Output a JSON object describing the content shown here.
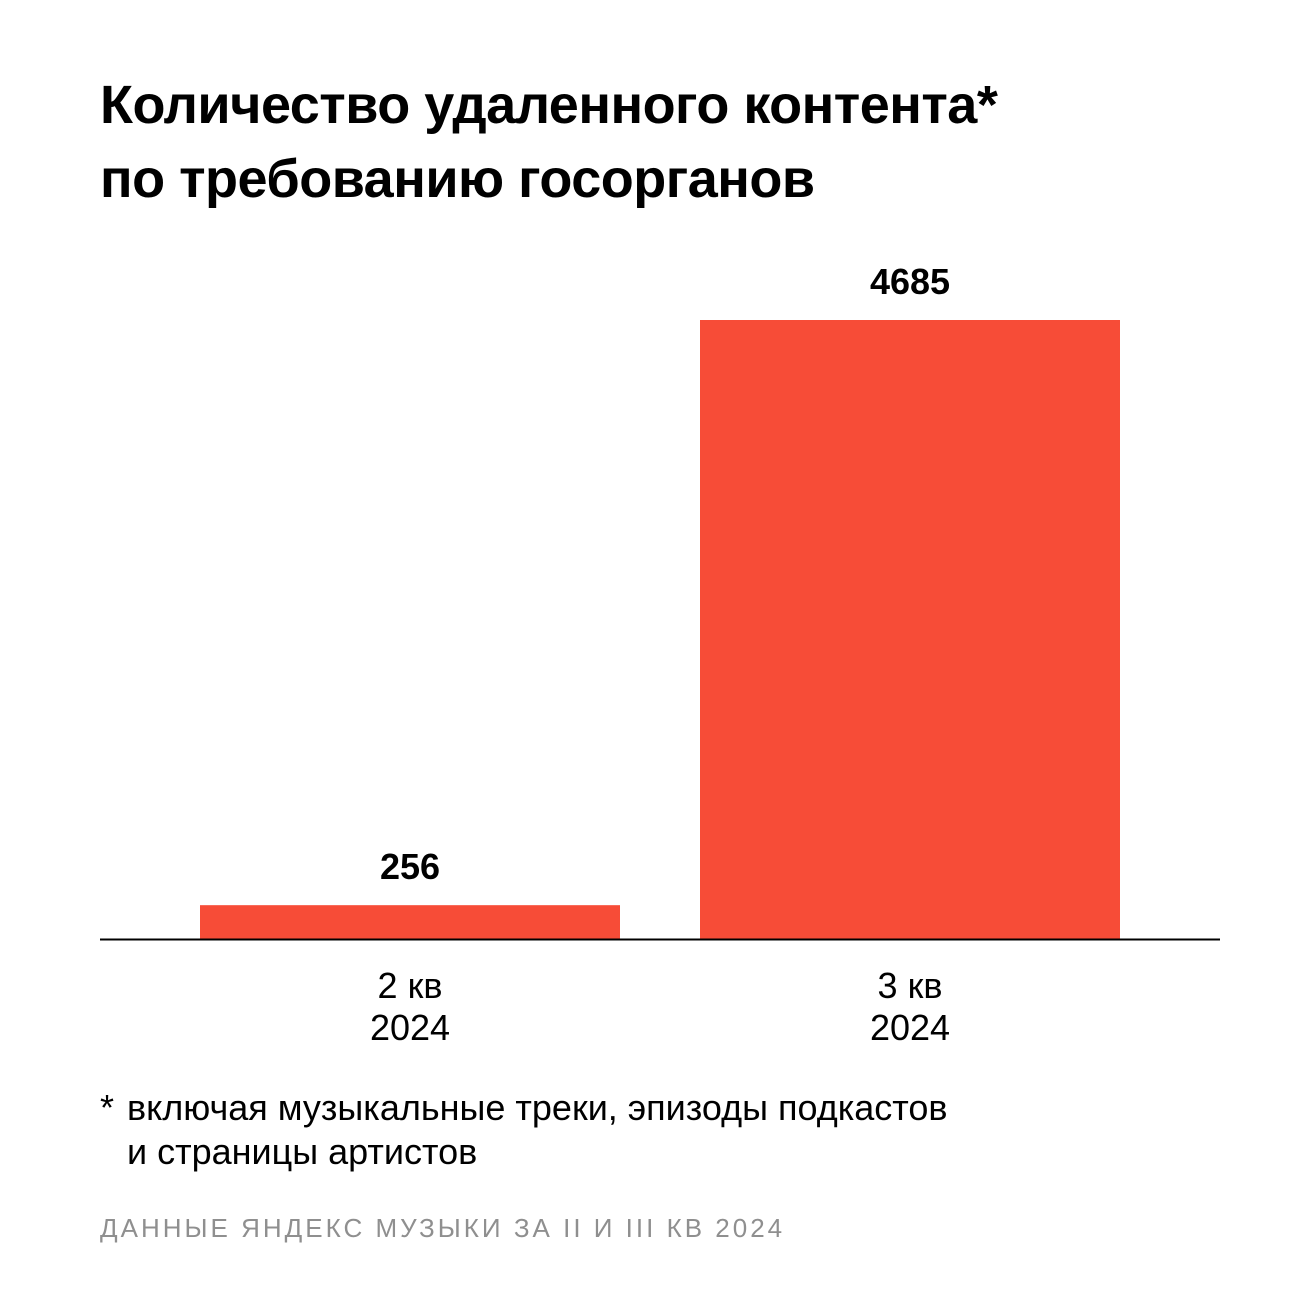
{
  "chart_data": {
    "type": "bar",
    "title_lines": [
      "Количество удаленного контента*",
      "по требованию госорганов"
    ],
    "categories": [
      {
        "line1": "2 кв",
        "line2": "2024"
      },
      {
        "line1": "3 кв",
        "line2": "2024"
      }
    ],
    "values": [
      256,
      4685
    ],
    "data_labels": [
      "256",
      "4685"
    ],
    "xlabel": "",
    "ylabel": "",
    "ylim": [
      0,
      4685
    ],
    "grid": false,
    "bar_color": "#f74c37",
    "axis_color": "#000000"
  },
  "footnote": {
    "mark": "*",
    "lines": [
      "включая музыкальные треки, эпизоды подкастов",
      "и страницы артистов"
    ]
  },
  "source": "ДАННЫЕ ЯНДЕКС МУЗЫКИ ЗА II И III КВ 2024"
}
